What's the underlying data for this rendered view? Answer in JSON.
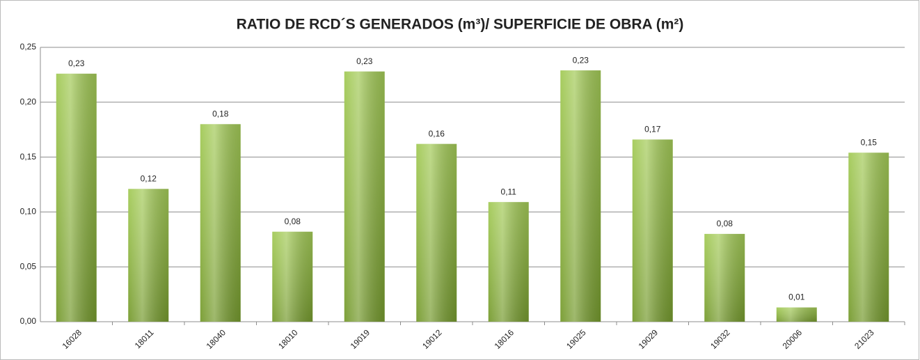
{
  "chart_data": {
    "type": "bar",
    "title": "RATIO DE RCD´S GENERADOS (m³)/ SUPERFICIE DE OBRA (m²)",
    "categories": [
      "16028",
      "18011",
      "18040",
      "18010",
      "19019",
      "19012",
      "18016",
      "19025",
      "19029",
      "19032",
      "20006",
      "21023"
    ],
    "values": [
      0.226,
      0.121,
      0.18,
      0.082,
      0.228,
      0.162,
      0.109,
      0.229,
      0.166,
      0.08,
      0.013,
      0.154
    ],
    "value_labels": [
      "0,23",
      "0,12",
      "0,18",
      "0,08",
      "0,23",
      "0,16",
      "0,11",
      "0,23",
      "0,17",
      "0,08",
      "0,01",
      "0,15"
    ],
    "color": "#93c13a",
    "ylim": [
      0,
      0.25
    ],
    "yticks": [
      {
        "value": 0,
        "label": "0,00"
      },
      {
        "value": 0.05,
        "label": "0,05"
      },
      {
        "value": 0.1,
        "label": "0,10"
      },
      {
        "value": 0.15,
        "label": "0,15"
      },
      {
        "value": 0.2,
        "label": "0,20"
      },
      {
        "value": 0.25,
        "label": "0,25"
      }
    ],
    "grid": true
  }
}
